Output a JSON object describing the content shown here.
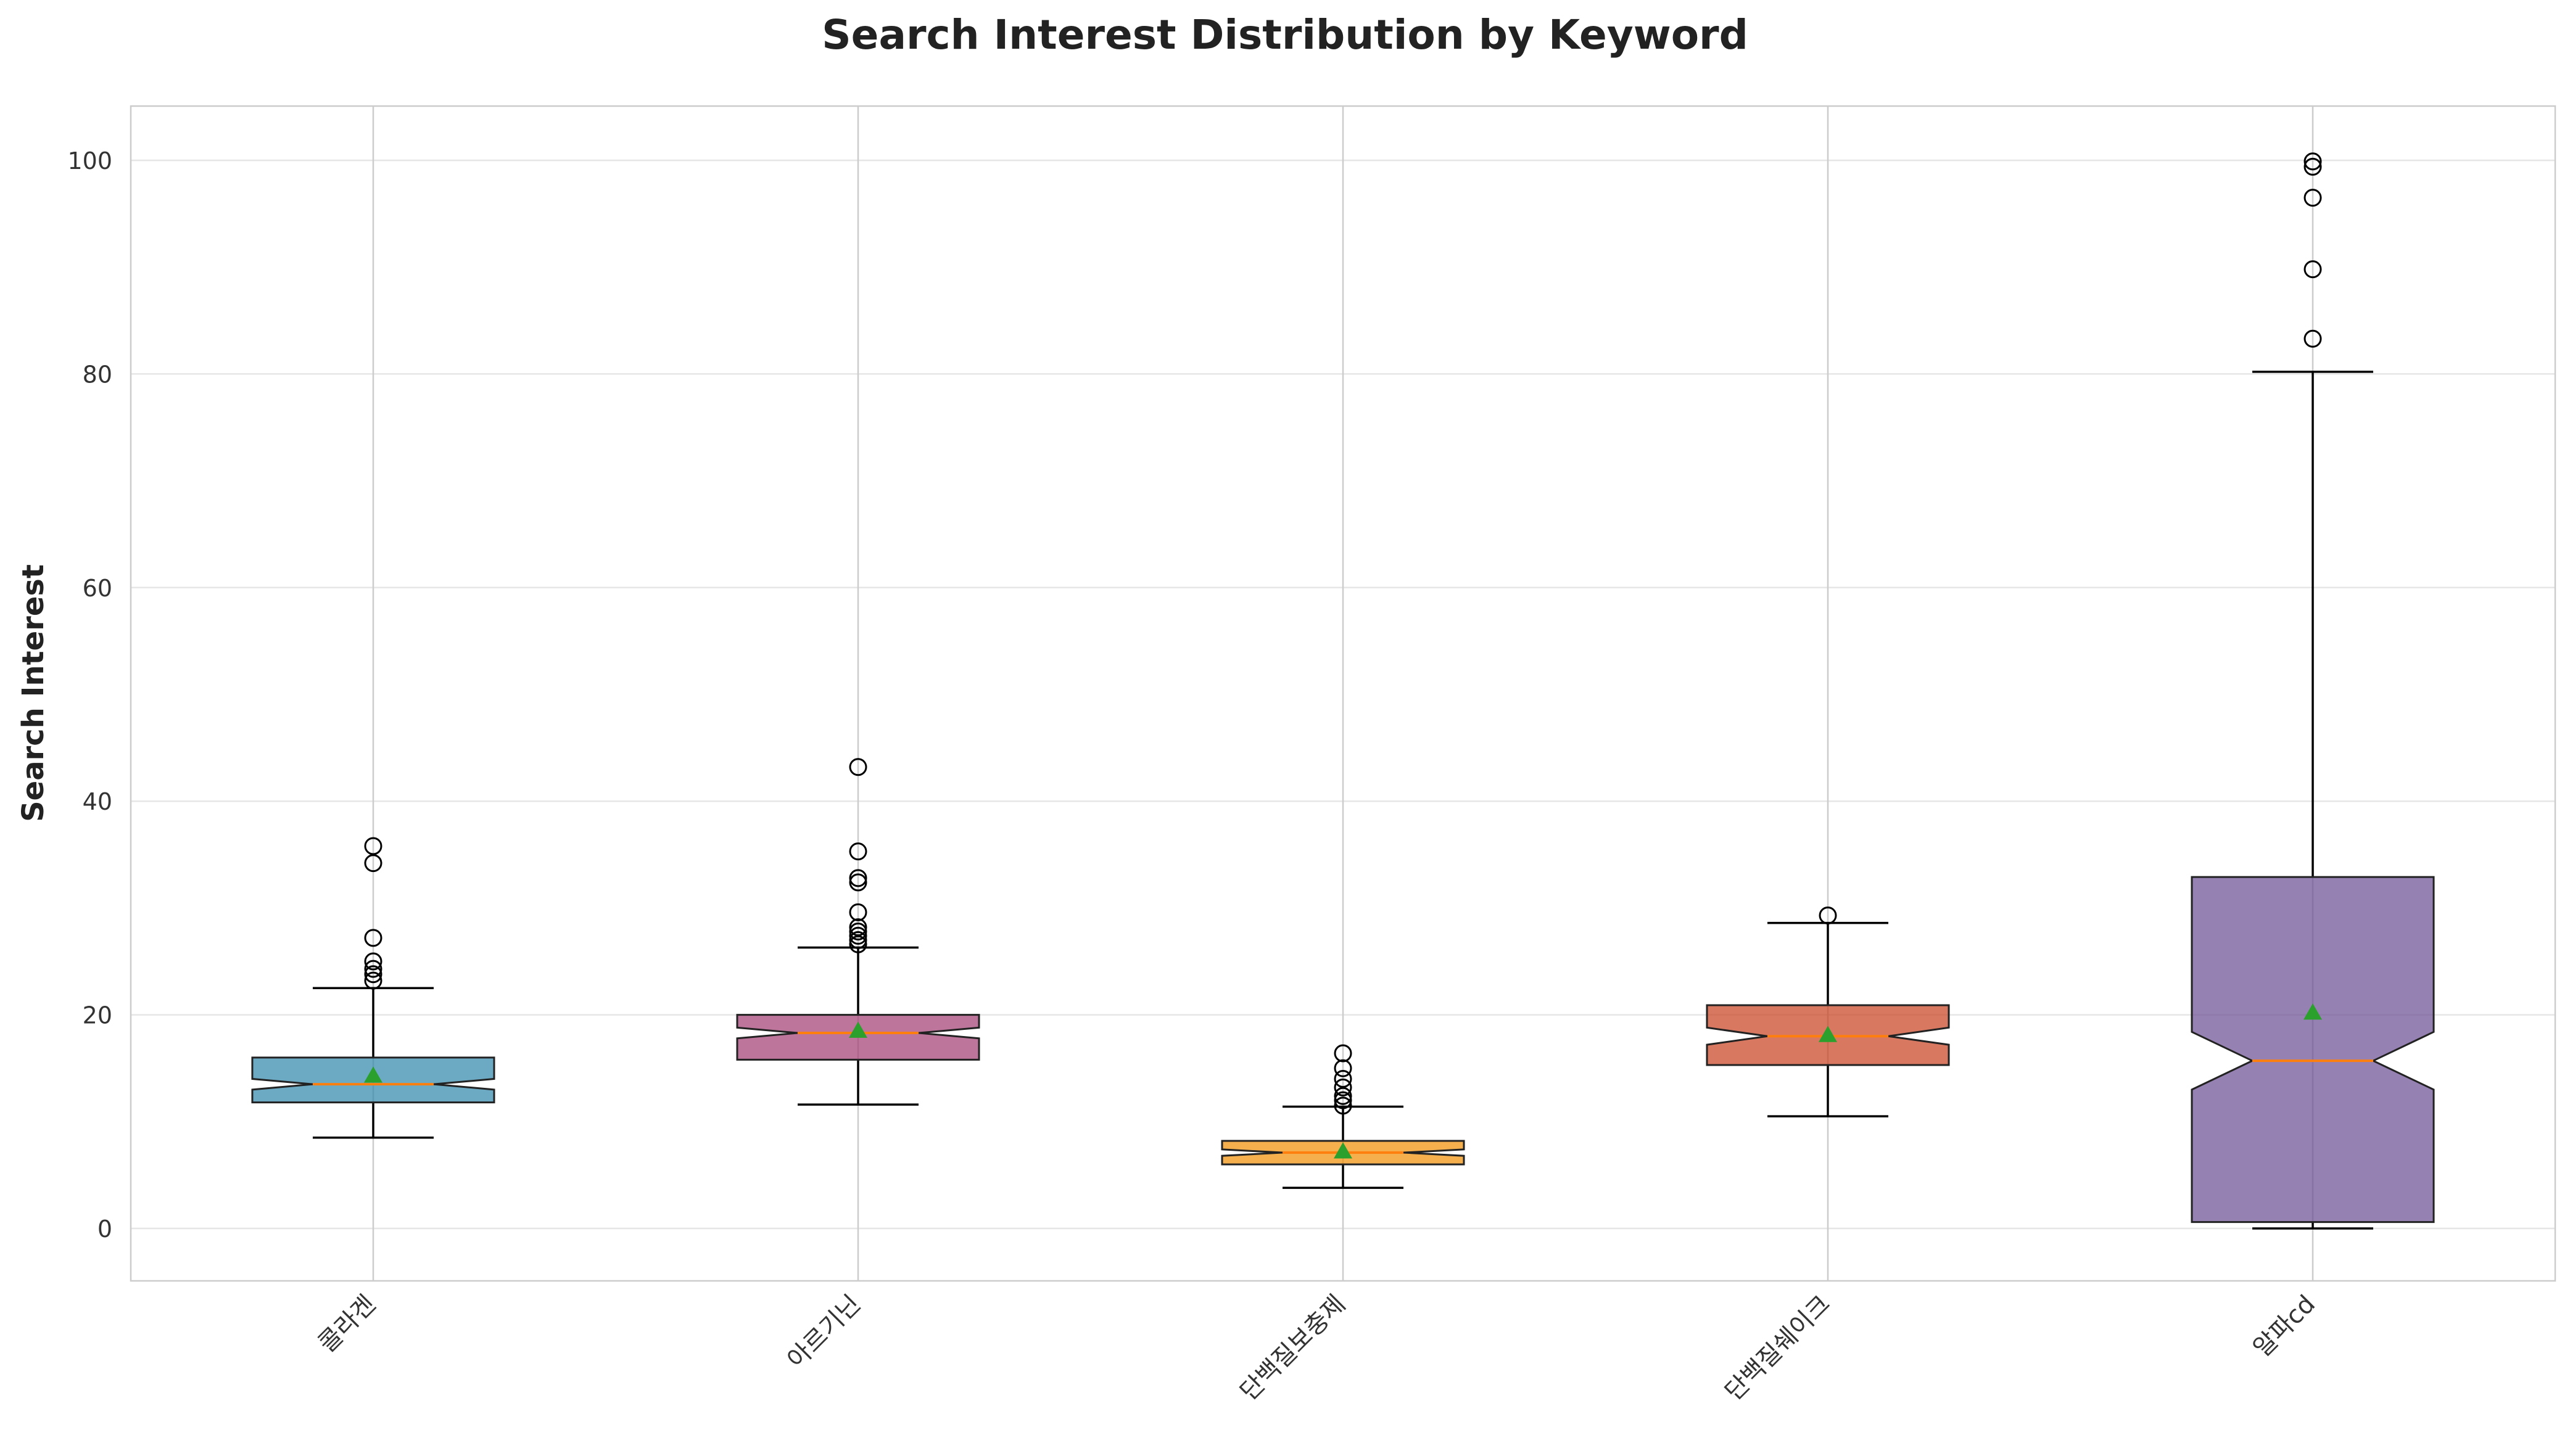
{
  "chart_data": {
    "type": "box",
    "title": "Search Interest Distribution by Keyword",
    "xlabel": "",
    "ylabel": "Search Interest",
    "ylim": [
      -5,
      105
    ],
    "yticks": [
      0,
      20,
      40,
      60,
      80,
      100
    ],
    "grid": true,
    "notched": true,
    "show_means": true,
    "median_color": "#ff7f0e",
    "mean_color": "#2ca02c",
    "categories": [
      "콜라겐",
      "아르기닌",
      "단백질보충제",
      "단백질쉐이크",
      "알파cd"
    ],
    "boxes": [
      {
        "name": "콜라겐",
        "color": "#2e86ab",
        "whisker_low": 8.5,
        "q1": 11.8,
        "median": 13.5,
        "q3": 16.0,
        "whisker_high": 22.5,
        "mean": 14.3,
        "notch": [
          13.0,
          14.0
        ],
        "outliers": [
          23.2,
          23.8,
          24.3,
          25.0,
          27.2,
          34.2,
          35.8
        ]
      },
      {
        "name": "아르기닌",
        "color": "#a23b72",
        "whisker_low": 11.6,
        "q1": 15.8,
        "median": 18.3,
        "q3": 20.0,
        "whisker_high": 26.3,
        "mean": 18.5,
        "notch": [
          17.8,
          18.8
        ],
        "outliers": [
          26.6,
          27.0,
          27.4,
          27.8,
          28.2,
          29.6,
          32.4,
          32.8,
          35.3,
          43.2
        ]
      },
      {
        "name": "단백질보충제",
        "color": "#f18f01",
        "whisker_low": 3.8,
        "q1": 6.0,
        "median": 7.1,
        "q3": 8.2,
        "whisker_high": 11.4,
        "mean": 7.2,
        "notch": [
          6.8,
          7.4
        ],
        "outliers": [
          11.5,
          12.0,
          12.4,
          13.2,
          14.0,
          15.0,
          16.4
        ]
      },
      {
        "name": "단백질쉐이크",
        "color": "#c73e1d",
        "whisker_low": 10.5,
        "q1": 15.3,
        "median": 18.0,
        "q3": 20.9,
        "whisker_high": 28.6,
        "mean": 18.1,
        "notch": [
          17.2,
          18.8
        ],
        "outliers": [
          29.3
        ]
      },
      {
        "name": "알파cd",
        "color": "#6a4c93",
        "whisker_low": 0.0,
        "q1": 0.6,
        "median": 15.7,
        "q3": 32.9,
        "whisker_high": 80.2,
        "mean": 20.2,
        "notch": [
          13.0,
          18.4
        ],
        "outliers": [
          83.3,
          89.8,
          96.5,
          99.4,
          99.9
        ]
      }
    ]
  }
}
